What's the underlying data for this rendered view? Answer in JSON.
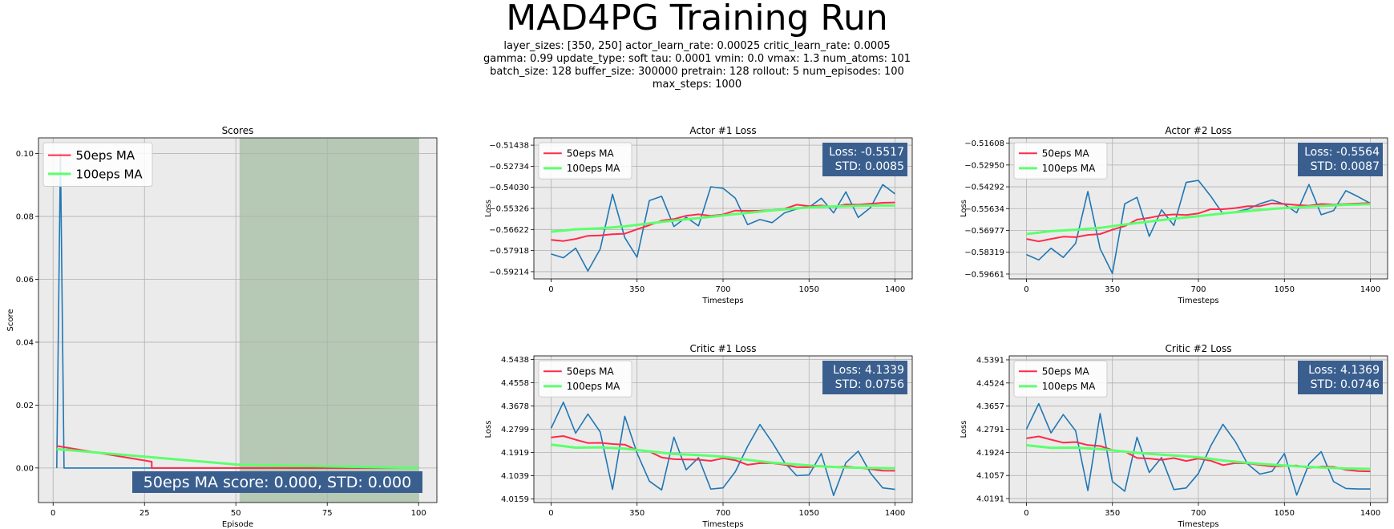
{
  "title": "MAD4PG Training Run",
  "params_lines": [
    "layer_sizes: [350, 250]  actor_learn_rate: 0.00025  critic_learn_rate: 0.0005",
    "gamma: 0.99  update_type: soft  tau: 0.0001  vmin: 0.0  vmax: 1.3  num_atoms: 101",
    "batch_size: 128  buffer_size: 300000  pretrain: 128  rollout: 5  num_episodes: 100",
    "max_steps: 1000"
  ],
  "colors": {
    "raw": "#1f77b4",
    "ma50": "#ff2a4a",
    "ma100": "#5dff6e",
    "plot_bg": "#ebebeb",
    "grid": "#b0b0b0",
    "box": "#3a5f8f",
    "shade": "#b5c9b5"
  },
  "chart_data": [
    {
      "id": "scores",
      "type": "line",
      "title": "Scores",
      "xlabel": "Episode",
      "ylabel": "Score",
      "xlim": [
        -4,
        105
      ],
      "ylim": [
        -0.011,
        0.105
      ],
      "xticks": [
        0,
        25,
        50,
        75,
        100
      ],
      "yticks": [
        0.0,
        0.02,
        0.04,
        0.06,
        0.08,
        0.1
      ],
      "ytick_labels": [
        "0.00",
        "0.02",
        "0.04",
        "0.06",
        "0.08",
        "0.10"
      ],
      "grid": true,
      "legend": "top-left",
      "legend_font": 15,
      "shaded_region": [
        51,
        100
      ],
      "series": [
        {
          "name": "raw",
          "x": [
            1,
            2,
            3,
            100
          ],
          "values": [
            0.0,
            0.1,
            0.0,
            0.0
          ]
        },
        {
          "name": "50eps MA",
          "x": [
            1,
            27,
            27,
            100
          ],
          "values": [
            0.007,
            0.002,
            0.0,
            0.0
          ]
        },
        {
          "name": "100eps MA",
          "x": [
            1,
            51,
            100
          ],
          "values": [
            0.006,
            0.001,
            0.0
          ]
        }
      ],
      "annotation": "50eps MA score: 0.000, STD: 0.000"
    },
    {
      "id": "actor1",
      "type": "line",
      "title": "Actor #1 Loss",
      "xlabel": "Timesteps",
      "ylabel": "Loss",
      "xlim": [
        -70,
        1470
      ],
      "ylim": [
        -0.5966,
        0.0
      ],
      "ylim_top": -0.5099,
      "xticks": [
        0,
        350,
        700,
        1050,
        1400
      ],
      "yticks": [
        -0.59214,
        -0.57918,
        -0.56622,
        -0.55326,
        -0.5403,
        -0.52734,
        -0.51438
      ],
      "ytick_labels": [
        "−0.59214",
        "−0.57918",
        "−0.56622",
        "−0.55326",
        "−0.54030",
        "−0.52734",
        "−0.51438"
      ],
      "grid": true,
      "legend": "top-left",
      "legend_font": 12,
      "series": [
        {
          "name": "raw",
          "x": [
            0,
            50,
            100,
            150,
            200,
            250,
            300,
            350,
            400,
            450,
            500,
            550,
            600,
            650,
            700,
            750,
            800,
            850,
            900,
            950,
            1000,
            1050,
            1100,
            1150,
            1200,
            1250,
            1300,
            1350,
            1400
          ],
          "values": [
            -0.5813,
            -0.5836,
            -0.5777,
            -0.5917,
            -0.5782,
            -0.5446,
            -0.5712,
            -0.5833,
            -0.5484,
            -0.5458,
            -0.5644,
            -0.5587,
            -0.564,
            -0.54,
            -0.5409,
            -0.547,
            -0.5632,
            -0.5601,
            -0.562,
            -0.556,
            -0.5536,
            -0.5526,
            -0.547,
            -0.556,
            -0.5431,
            -0.5588,
            -0.5528,
            -0.5386,
            -0.5443
          ]
        },
        {
          "name": "50eps MA",
          "x": [
            0,
            50,
            100,
            150,
            200,
            250,
            300,
            350,
            400,
            450,
            500,
            550,
            600,
            650,
            700,
            750,
            800,
            850,
            900,
            950,
            1000,
            1050,
            1100,
            1150,
            1200,
            1250,
            1300,
            1350,
            1400
          ],
          "values": [
            -0.5726,
            -0.5733,
            -0.572,
            -0.5701,
            -0.5699,
            -0.5691,
            -0.5688,
            -0.5661,
            -0.5636,
            -0.5608,
            -0.5598,
            -0.5578,
            -0.5569,
            -0.5578,
            -0.557,
            -0.5546,
            -0.5548,
            -0.5547,
            -0.5543,
            -0.5535,
            -0.551,
            -0.5519,
            -0.5515,
            -0.5524,
            -0.5508,
            -0.551,
            -0.5504,
            -0.5498,
            -0.5496
          ]
        },
        {
          "name": "100eps MA",
          "x": [
            0,
            100,
            200,
            300,
            400,
            500,
            600,
            700,
            800,
            900,
            1000,
            1100,
            1200,
            1300,
            1400
          ],
          "values": [
            -0.5676,
            -0.5661,
            -0.5655,
            -0.5643,
            -0.5625,
            -0.5607,
            -0.5592,
            -0.5576,
            -0.556,
            -0.5545,
            -0.5532,
            -0.5522,
            -0.5519,
            -0.5515,
            -0.5515
          ]
        }
      ],
      "annotation_lines": [
        "Loss: -0.5517",
        "STD: 0.0085"
      ]
    },
    {
      "id": "actor2",
      "type": "line",
      "title": "Actor #2 Loss",
      "xlabel": "Timesteps",
      "ylabel": "Loss",
      "xlim": [
        -70,
        1470
      ],
      "ylim": [
        -0.5996,
        -0.5128
      ],
      "xticks": [
        0,
        350,
        700,
        1050,
        1400
      ],
      "yticks": [
        -0.59661,
        -0.58319,
        -0.56977,
        -0.55634,
        -0.54292,
        -0.5295,
        -0.51608
      ],
      "ytick_labels": [
        "−0.59661",
        "−0.58319",
        "−0.56977",
        "−0.55634",
        "−0.54292",
        "−0.52950",
        "−0.51608"
      ],
      "grid": true,
      "legend": "top-left",
      "legend_font": 12,
      "series": [
        {
          "name": "raw",
          "x": [
            0,
            50,
            100,
            150,
            200,
            250,
            300,
            350,
            400,
            450,
            500,
            550,
            600,
            650,
            700,
            750,
            800,
            850,
            900,
            950,
            1000,
            1050,
            1100,
            1150,
            1200,
            1250,
            1300,
            1350,
            1400
          ],
          "values": [
            -0.5846,
            -0.5879,
            -0.5807,
            -0.5864,
            -0.5777,
            -0.5458,
            -0.581,
            -0.5962,
            -0.5534,
            -0.5494,
            -0.5734,
            -0.5571,
            -0.5667,
            -0.5402,
            -0.539,
            -0.5486,
            -0.5596,
            -0.5583,
            -0.5567,
            -0.5534,
            -0.551,
            -0.5537,
            -0.5589,
            -0.5415,
            -0.5601,
            -0.5576,
            -0.5453,
            -0.549,
            -0.5531
          ]
        },
        {
          "name": "50eps MA",
          "x": [
            0,
            50,
            100,
            150,
            200,
            250,
            300,
            350,
            400,
            450,
            500,
            550,
            600,
            650,
            700,
            750,
            800,
            850,
            900,
            950,
            1000,
            1050,
            1100,
            1150,
            1200,
            1250,
            1300,
            1350,
            1400
          ],
          "values": [
            -0.575,
            -0.5765,
            -0.575,
            -0.5736,
            -0.5739,
            -0.5725,
            -0.572,
            -0.5693,
            -0.5671,
            -0.5631,
            -0.562,
            -0.5605,
            -0.5599,
            -0.5603,
            -0.5593,
            -0.5567,
            -0.5567,
            -0.556,
            -0.5548,
            -0.5548,
            -0.5531,
            -0.5535,
            -0.5541,
            -0.5545,
            -0.5535,
            -0.5539,
            -0.5535,
            -0.5532,
            -0.5529
          ]
        },
        {
          "name": "100eps MA",
          "x": [
            0,
            100,
            200,
            300,
            400,
            500,
            600,
            700,
            800,
            900,
            1000,
            1100,
            1200,
            1300,
            1400
          ],
          "values": [
            -0.572,
            -0.5702,
            -0.5693,
            -0.5682,
            -0.5661,
            -0.5643,
            -0.5625,
            -0.561,
            -0.5593,
            -0.5579,
            -0.5565,
            -0.5555,
            -0.5547,
            -0.554,
            -0.5536
          ]
        }
      ],
      "annotation_lines": [
        "Loss: -0.5564",
        "STD: 0.0087"
      ]
    },
    {
      "id": "critic1",
      "type": "line",
      "title": "Critic #1 Loss",
      "xlabel": "Timesteps",
      "ylabel": "Loss",
      "xlim": [
        -70,
        1470
      ],
      "ylim": [
        4.0024,
        4.557
      ],
      "xticks": [
        0,
        350,
        700,
        1050,
        1400
      ],
      "yticks": [
        4.0159,
        4.1039,
        4.1919,
        4.2799,
        4.3678,
        4.4558,
        4.5438
      ],
      "ytick_labels": [
        "4.0159",
        "4.1039",
        "4.1919",
        "4.2799",
        "4.3678",
        "4.4558",
        "4.5438"
      ],
      "grid": true,
      "legend": "top-left",
      "legend_font": 12,
      "series": [
        {
          "name": "raw",
          "x": [
            0,
            50,
            100,
            150,
            200,
            250,
            300,
            350,
            400,
            450,
            500,
            550,
            600,
            650,
            700,
            750,
            800,
            850,
            900,
            950,
            1000,
            1050,
            1100,
            1150,
            1200,
            1250,
            1300,
            1350,
            1400
          ],
          "values": [
            4.283,
            4.3819,
            4.2645,
            4.337,
            4.269,
            4.052,
            4.3285,
            4.1893,
            4.0833,
            4.05,
            4.2494,
            4.126,
            4.172,
            4.0532,
            4.058,
            4.1192,
            4.2144,
            4.2975,
            4.2302,
            4.1545,
            4.1039,
            4.107,
            4.188,
            4.029,
            4.153,
            4.1966,
            4.114,
            4.0579,
            4.052
          ]
        },
        {
          "name": "50eps MA",
          "x": [
            0,
            50,
            100,
            150,
            200,
            250,
            300,
            350,
            400,
            450,
            500,
            550,
            600,
            650,
            700,
            750,
            800,
            850,
            900,
            950,
            1000,
            1050,
            1100,
            1150,
            1200,
            1250,
            1300,
            1350,
            1400
          ],
          "values": [
            4.2487,
            4.254,
            4.2401,
            4.2275,
            4.2283,
            4.2236,
            4.2215,
            4.1999,
            4.195,
            4.173,
            4.1665,
            4.1654,
            4.1645,
            4.16,
            4.1696,
            4.1623,
            4.145,
            4.1513,
            4.1513,
            4.145,
            4.136,
            4.136,
            4.141,
            4.136,
            4.139,
            4.1343,
            4.129,
            4.123,
            4.1225
          ]
        },
        {
          "name": "100eps MA",
          "x": [
            0,
            100,
            200,
            300,
            400,
            500,
            600,
            700,
            800,
            900,
            1000,
            1100,
            1200,
            1300,
            1400
          ],
          "values": [
            4.2211,
            4.21,
            4.2111,
            4.206,
            4.1961,
            4.186,
            4.182,
            4.176,
            4.164,
            4.153,
            4.1463,
            4.139,
            4.135,
            4.133,
            4.132
          ]
        }
      ],
      "annotation_lines": [
        "Loss: 4.1339",
        "STD: 0.0756"
      ]
    },
    {
      "id": "critic2",
      "type": "line",
      "title": "Critic #2 Loss",
      "xlabel": "Timesteps",
      "ylabel": "Loss",
      "xlim": [
        -70,
        1470
      ],
      "ylim": [
        4.0042,
        4.554
      ],
      "xticks": [
        0,
        350,
        700,
        1050,
        1400
      ],
      "yticks": [
        4.0191,
        4.1057,
        4.1924,
        4.2791,
        4.3657,
        4.4524,
        4.5391
      ],
      "ytick_labels": [
        "4.0191",
        "4.1057",
        "4.1924",
        "4.2791",
        "4.3657",
        "4.4524",
        "4.5391"
      ],
      "grid": true,
      "legend": "top-left",
      "legend_font": 12,
      "series": [
        {
          "name": "raw",
          "x": [
            0,
            50,
            100,
            150,
            200,
            250,
            300,
            350,
            400,
            450,
            500,
            550,
            600,
            650,
            700,
            750,
            800,
            850,
            900,
            950,
            1000,
            1050,
            1100,
            1150,
            1200,
            1250,
            1300,
            1350,
            1400
          ],
          "values": [
            4.279,
            4.375,
            4.265,
            4.334,
            4.273,
            4.049,
            4.338,
            4.0833,
            4.0467,
            4.249,
            4.117,
            4.1727,
            4.053,
            4.059,
            4.1133,
            4.2161,
            4.2975,
            4.233,
            4.149,
            4.111,
            4.121,
            4.188,
            4.032,
            4.149,
            4.195,
            4.083,
            4.057,
            4.055,
            4.055
          ]
        },
        {
          "name": "50eps MA",
          "x": [
            0,
            50,
            100,
            150,
            200,
            250,
            300,
            350,
            400,
            450,
            500,
            550,
            600,
            650,
            700,
            750,
            800,
            850,
            900,
            950,
            1000,
            1050,
            1100,
            1150,
            1200,
            1250,
            1300,
            1350,
            1400
          ],
          "values": [
            4.245,
            4.252,
            4.24,
            4.2287,
            4.231,
            4.2195,
            4.216,
            4.201,
            4.196,
            4.1712,
            4.169,
            4.164,
            4.171,
            4.16,
            4.169,
            4.161,
            4.1445,
            4.152,
            4.151,
            4.145,
            4.1397,
            4.141,
            4.143,
            4.1345,
            4.139,
            4.138,
            4.127,
            4.122,
            4.121
          ]
        },
        {
          "name": "100eps MA",
          "x": [
            0,
            100,
            200,
            300,
            400,
            500,
            600,
            700,
            800,
            900,
            1000,
            1100,
            1200,
            1300,
            1400
          ],
          "values": [
            4.219,
            4.209,
            4.21,
            4.205,
            4.195,
            4.187,
            4.181,
            4.174,
            4.162,
            4.153,
            4.146,
            4.14,
            4.1355,
            4.132,
            4.1305
          ]
        }
      ],
      "annotation_lines": [
        "Loss: 4.1369",
        "STD: 0.0746"
      ]
    }
  ]
}
